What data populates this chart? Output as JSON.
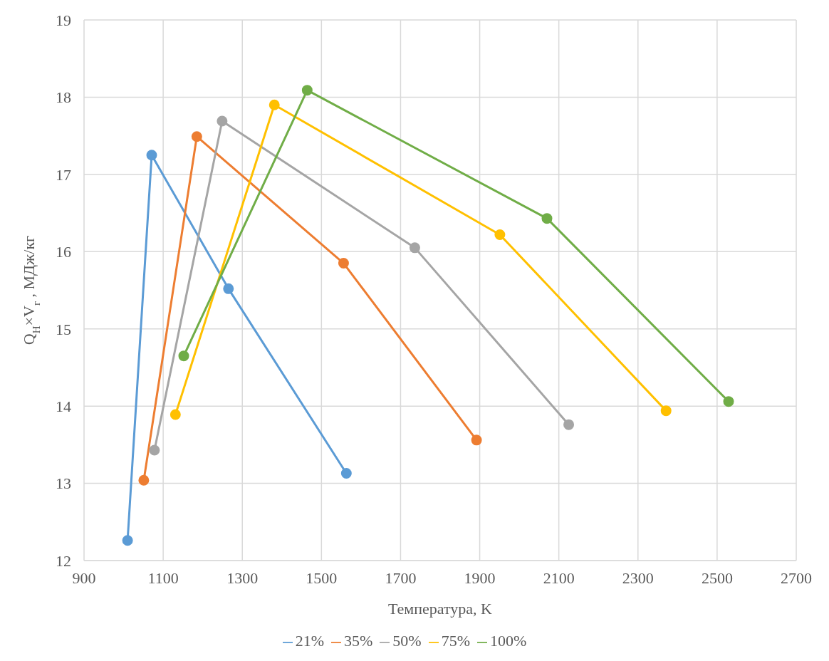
{
  "chart_data": {
    "type": "line",
    "xlabel": "Температура, K",
    "ylabel": "Q$_{Н}$×V$_{г}$ , МДж/кг",
    "xlim": [
      900,
      2700
    ],
    "xticks": [
      900,
      1100,
      1300,
      1500,
      1700,
      1900,
      2100,
      2300,
      2500,
      2700
    ],
    "ylim": [
      12,
      19
    ],
    "yticks": [
      12,
      13,
      14,
      15,
      16,
      17,
      18,
      19
    ],
    "grid": true,
    "legend": "bottom",
    "marker": "circle",
    "line_style": "solid",
    "series": [
      {
        "name": "21%",
        "color": "#5b9bd5",
        "x": [
          1010,
          1071,
          1265,
          1563
        ],
        "values": [
          12.26,
          17.25,
          15.52,
          13.13
        ]
      },
      {
        "name": "35%",
        "color": "#ed7d31",
        "x": [
          1051,
          1185,
          1556,
          1892
        ],
        "values": [
          13.04,
          17.49,
          15.85,
          13.56
        ]
      },
      {
        "name": "50%",
        "color": "#a5a5a5",
        "x": [
          1078,
          1249,
          1736,
          2125
        ],
        "values": [
          13.43,
          17.69,
          16.05,
          13.76
        ]
      },
      {
        "name": "75%",
        "color": "#ffc000",
        "x": [
          1131,
          1381,
          1951,
          2371
        ],
        "values": [
          13.89,
          17.9,
          16.22,
          13.94
        ]
      },
      {
        "name": "100%",
        "color": "#70ad47",
        "x": [
          1152,
          1464,
          2070,
          2529
        ],
        "values": [
          14.65,
          18.09,
          16.43,
          14.06
        ]
      }
    ]
  }
}
